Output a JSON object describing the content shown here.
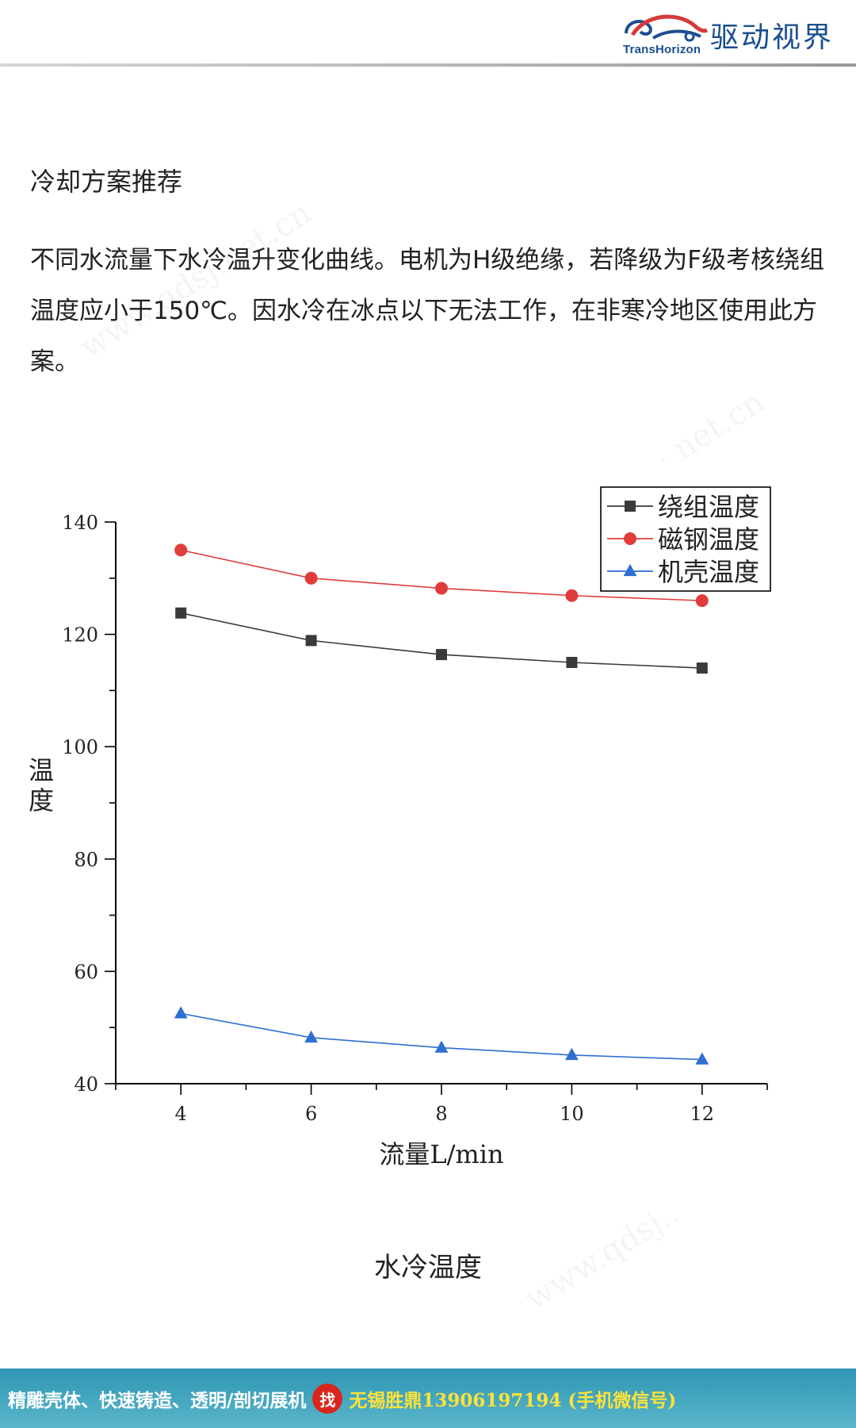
{
  "header": {
    "logo_en": "TransHorizon",
    "logo_cn": "驱动视界",
    "logo_icon": "car-swirl-logo-icon"
  },
  "section_title": "冷却方案推荐",
  "intro_text": "不同水流量下水冷温升变化曲线。电机为H级绝缘，若降级为F级考核绕组温度应小于150℃。因水冷在冰点以下无法工作，在非寒冷地区使用此方案。",
  "chart_data": {
    "type": "line",
    "title": "",
    "xlabel": "流量L/min",
    "ylabel": "温度",
    "xlim": [
      3,
      13
    ],
    "ylim": [
      40,
      140
    ],
    "x_ticks": [
      4,
      6,
      8,
      10,
      12
    ],
    "y_ticks": [
      40,
      60,
      80,
      100,
      120,
      140
    ],
    "grid": false,
    "legend_position": "top-right",
    "x": [
      4,
      6,
      8,
      10,
      12
    ],
    "series": [
      {
        "name": "绕组温度",
        "values": [
          123.8,
          118.9,
          116.4,
          115.0,
          114.0
        ],
        "color": "#3a3a3a",
        "marker": "square"
      },
      {
        "name": "磁钢温度",
        "values": [
          135.0,
          130.0,
          128.2,
          126.9,
          126.0
        ],
        "color": "#e03c3c",
        "marker": "circle"
      },
      {
        "name": "机壳温度",
        "values": [
          52.5,
          48.2,
          46.4,
          45.1,
          44.3
        ],
        "color": "#2e6fd0",
        "marker": "triangle"
      }
    ]
  },
  "chart_caption": "水冷温度",
  "watermarks": [
    "www.qdsj.net.cn",
    "· net.cn",
    "www.qdsj.."
  ],
  "footer": {
    "left_text": "精雕壳体、快速铸造、透明/剖切展机",
    "badge": "找",
    "right_text": "无锡胜鼎13906197194 (手机微信号)"
  }
}
